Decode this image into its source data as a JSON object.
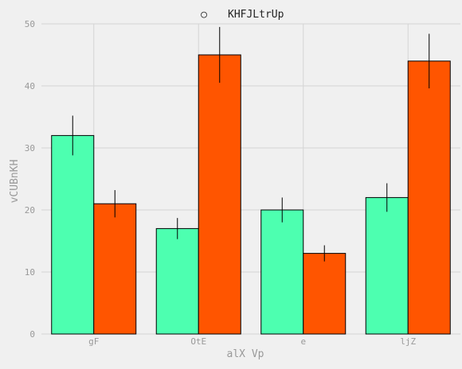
{
  "chart_data": {
    "type": "bar",
    "title": "KHFJLtrUp",
    "title_marker": "○",
    "xlabel": "alX Vp",
    "ylabel": "vCUBnKH",
    "categories": [
      "gF",
      "OtE",
      "e",
      "ljZ"
    ],
    "series": [
      {
        "color": "#4dffb0",
        "values": [
          32,
          17,
          20,
          22
        ],
        "errors": [
          3.2,
          1.7,
          2.0,
          2.3
        ]
      },
      {
        "color": "#ff5500",
        "values": [
          21,
          45,
          13,
          44
        ],
        "errors": [
          2.2,
          4.5,
          1.3,
          4.4
        ]
      }
    ],
    "ylim": [
      0,
      50
    ],
    "yticks": [
      0,
      10,
      20,
      30,
      40,
      50
    ],
    "grid": true,
    "background": "#f0f0f0",
    "grid_color": "#d4d4d4",
    "text_color": "#999999"
  }
}
